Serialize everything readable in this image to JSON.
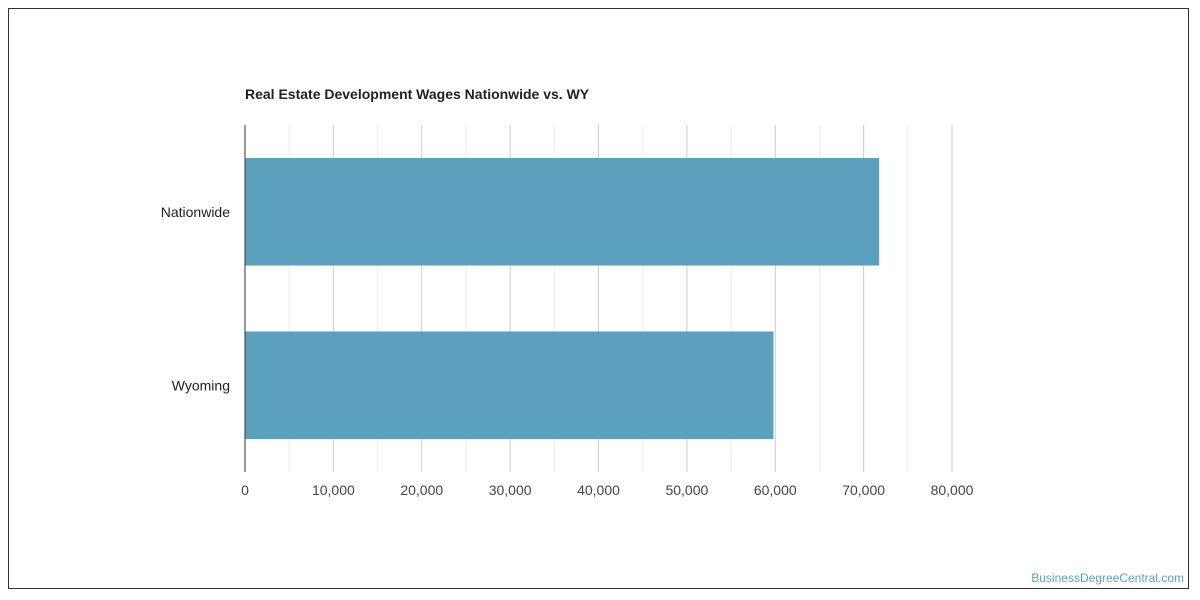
{
  "chart_data": {
    "type": "bar",
    "orientation": "horizontal",
    "title": "Real Estate Development Wages Nationwide vs. WY",
    "categories": [
      "Nationwide",
      "Wyoming"
    ],
    "values": [
      71760,
      59800
    ],
    "xlim": [
      0,
      80000
    ],
    "xticks": [
      0,
      10000,
      20000,
      30000,
      40000,
      50000,
      60000,
      70000,
      80000
    ],
    "xtick_labels": [
      "0",
      "10,000",
      "20,000",
      "30,000",
      "40,000",
      "50,000",
      "60,000",
      "70,000",
      "80,000"
    ],
    "xlabel": "",
    "ylabel": "",
    "grid": true,
    "bar_color": "#5ba1bd"
  },
  "credit": "BusinessDegreeCentral.com"
}
